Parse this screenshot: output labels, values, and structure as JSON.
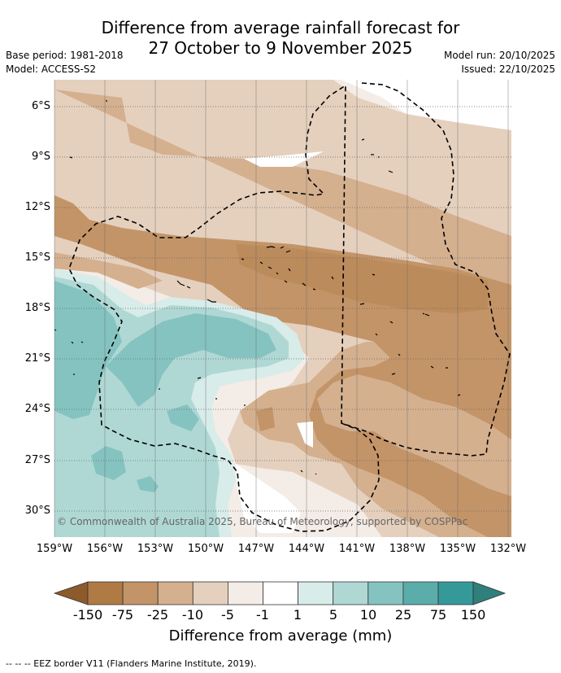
{
  "title": {
    "line1": "Difference from average rainfall forecast for",
    "line2": "27 October to 9 November 2025"
  },
  "meta": {
    "base_period": "Base period: 1981-2018",
    "model": "Model: ACCESS-S2",
    "model_run": "Model run: 20/10/2025",
    "issued": "Issued: 22/10/2025"
  },
  "map": {
    "lat_labels": [
      "6°S",
      "9°S",
      "12°S",
      "15°S",
      "18°S",
      "21°S",
      "24°S",
      "27°S",
      "30°S"
    ],
    "lon_labels": [
      "159°W",
      "156°W",
      "153°W",
      "150°W",
      "147°W",
      "144°W",
      "141°W",
      "138°W",
      "135°W",
      "132°W"
    ],
    "copyright": "© Commonwealth of Australia 2025, Bureau of Meteorology, supported by COSPPac"
  },
  "colorbar": {
    "labels": [
      "-150",
      "-75",
      "-25",
      "-10",
      "-5",
      "-1",
      "1",
      "5",
      "10",
      "25",
      "75",
      "150"
    ],
    "colors": [
      "#8c5a2b",
      "#b07a45",
      "#c39468",
      "#d4b08f",
      "#e5d0be",
      "#f4ece6",
      "#ffffff",
      "#d8ecea",
      "#afd8d5",
      "#85c3c0",
      "#5aadaa",
      "#35999a",
      "#2f7f7b"
    ],
    "title": "Difference from average (mm)"
  },
  "footer": {
    "eez_note": "--  --  -- EEZ border V11 (Flanders Marine Institute, 2019)."
  }
}
